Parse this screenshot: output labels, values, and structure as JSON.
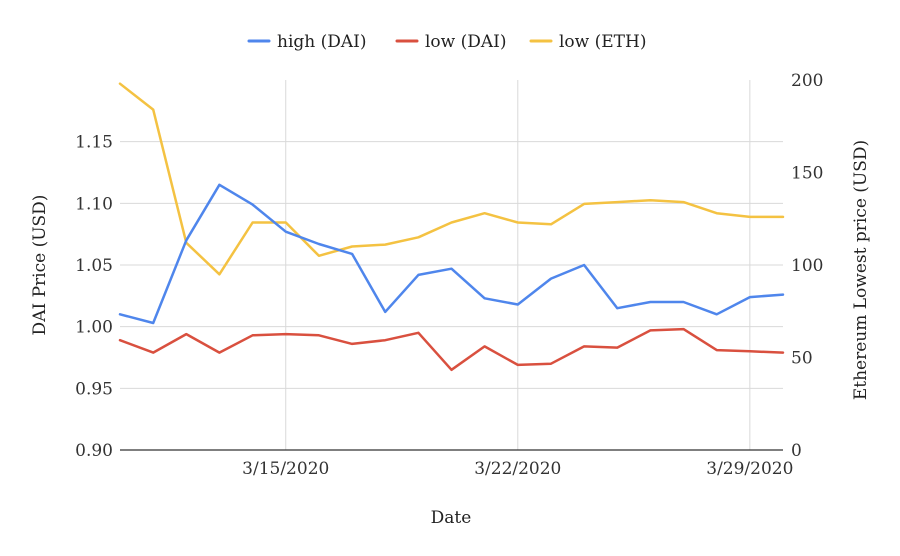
{
  "chart_data": {
    "type": "line",
    "xlabel": "Date",
    "ylabel": "DAI Price (USD)",
    "y2label": "Ethereum Lowest price (USD)",
    "x_dates": [
      "3/10",
      "3/11",
      "3/12",
      "3/13",
      "3/14",
      "3/15",
      "3/16",
      "3/17",
      "3/18",
      "3/19",
      "3/20",
      "3/21",
      "3/22",
      "3/23",
      "3/24",
      "3/25",
      "3/26",
      "3/27",
      "3/28",
      "3/29",
      "3/30"
    ],
    "x_ticks": [
      {
        "label": "3/15/2020",
        "index": 5
      },
      {
        "label": "3/22/2020",
        "index": 12
      },
      {
        "label": "3/29/2020",
        "index": 19
      }
    ],
    "ylim": [
      0.9,
      1.2
    ],
    "yticks": [
      "0.90",
      "0.95",
      "1.00",
      "1.05",
      "1.10",
      "1.15"
    ],
    "y2lim": [
      0,
      200
    ],
    "y2ticks": [
      "0",
      "50",
      "100",
      "150",
      "200"
    ],
    "grid": true,
    "legend_position": "top",
    "series": [
      {
        "name": "high (DAI)",
        "axis": "left",
        "color": "#4f86ec",
        "values": [
          1.01,
          1.003,
          1.07,
          1.115,
          1.099,
          1.077,
          1.067,
          1.059,
          1.012,
          1.042,
          1.047,
          1.023,
          1.018,
          1.039,
          1.05,
          1.015,
          1.02,
          1.02,
          1.01,
          1.024,
          1.026
        ]
      },
      {
        "name": "low (DAI)",
        "axis": "left",
        "color": "#d9503f",
        "values": [
          0.989,
          0.979,
          0.994,
          0.979,
          0.993,
          0.994,
          0.993,
          0.986,
          0.989,
          0.995,
          0.965,
          0.984,
          0.969,
          0.97,
          0.984,
          0.983,
          0.997,
          0.998,
          0.981,
          0.98,
          0.979
        ]
      },
      {
        "name": "low (ETH)",
        "axis": "right",
        "color": "#f4c242",
        "values": [
          198,
          184,
          112,
          95,
          123,
          123,
          105,
          110,
          111,
          115,
          123,
          128,
          123,
          122,
          133,
          134,
          135,
          134,
          128,
          126,
          126
        ]
      }
    ]
  }
}
